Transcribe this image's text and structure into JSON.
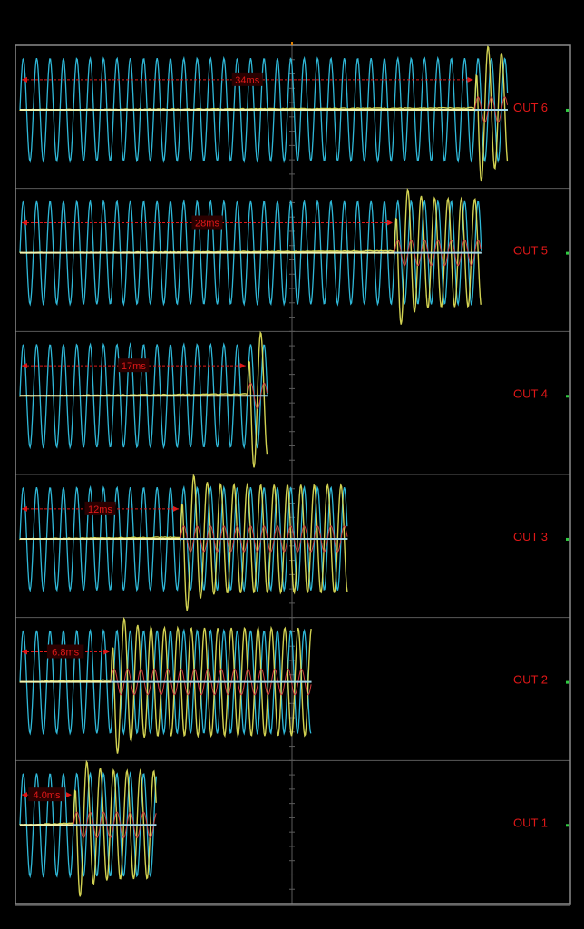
{
  "chart_data": {
    "type": "line",
    "title": "",
    "xlabel": "",
    "ylabel": "",
    "grid": true,
    "colors": {
      "background": "#000000",
      "grid": "#5a5a5a",
      "frame": "#8a8a8a",
      "reference_sine": "#2fb8d8",
      "transient": "#e8e85a",
      "secondary": "#d04040",
      "label": "#e01818",
      "delay_box": "#2a0000",
      "marker": "#2ecc40"
    },
    "panels": [
      {
        "label": "OUT 6",
        "delay_label": "34ms",
        "delay_ms": 34,
        "end_ms": 36.5
      },
      {
        "label": "OUT 5",
        "delay_label": "28ms",
        "delay_ms": 28,
        "end_ms": 34.5
      },
      {
        "label": "OUT 4",
        "delay_label": "17ms",
        "delay_ms": 17,
        "end_ms": 18.5
      },
      {
        "label": "OUT 3",
        "delay_label": "12ms",
        "delay_ms": 12,
        "end_ms": 24.5
      },
      {
        "label": "OUT 2",
        "delay_label": "6.8ms",
        "delay_ms": 6.8,
        "end_ms": 21.8
      },
      {
        "label": "OUT 1",
        "delay_label": "4.0ms",
        "delay_ms": 4.0,
        "end_ms": 10.2
      }
    ],
    "sine_period_ms": 1.0,
    "corner_text": ""
  }
}
